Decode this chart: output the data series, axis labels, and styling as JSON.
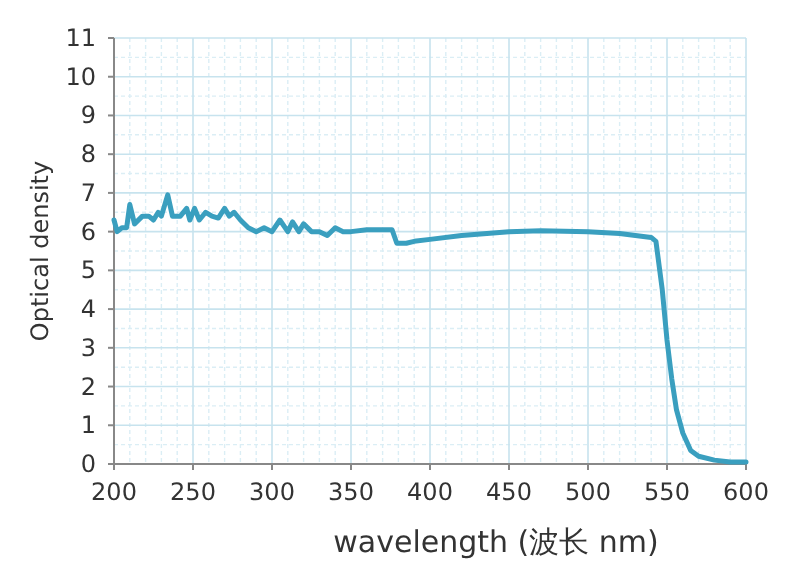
{
  "chart_data": {
    "type": "line",
    "xlabel": "wavelength (波长 nm)",
    "ylabel": "Optical density",
    "color": "#3a9fbf",
    "x": [
      200,
      202,
      205,
      208,
      210,
      213,
      218,
      222,
      225,
      228,
      230,
      234,
      237,
      242,
      246,
      248,
      251,
      254,
      258,
      262,
      266,
      270,
      273,
      276,
      280,
      285,
      290,
      295,
      300,
      305,
      310,
      313,
      317,
      320,
      325,
      330,
      335,
      340,
      345,
      350,
      360,
      370,
      376,
      379,
      385,
      390,
      400,
      420,
      450,
      470,
      500,
      520,
      540,
      543,
      547,
      550,
      553,
      556,
      560,
      565,
      570,
      580,
      590,
      600
    ],
    "values": [
      6.3,
      6.0,
      6.1,
      6.1,
      6.7,
      6.2,
      6.4,
      6.4,
      6.3,
      6.5,
      6.4,
      6.95,
      6.4,
      6.4,
      6.6,
      6.3,
      6.6,
      6.3,
      6.5,
      6.4,
      6.35,
      6.6,
      6.4,
      6.5,
      6.3,
      6.1,
      6.0,
      6.1,
      6.0,
      6.3,
      6.0,
      6.25,
      6.0,
      6.2,
      6.0,
      6.0,
      5.9,
      6.1,
      6.0,
      6.0,
      6.05,
      6.05,
      6.05,
      5.7,
      5.7,
      5.75,
      5.8,
      5.9,
      6.0,
      6.02,
      6.0,
      5.95,
      5.85,
      5.75,
      4.5,
      3.2,
      2.2,
      1.4,
      0.8,
      0.35,
      0.2,
      0.1,
      0.05,
      0.05
    ],
    "xlim": [
      200,
      600
    ],
    "ylim": [
      0,
      11
    ],
    "xticks": [
      200,
      250,
      300,
      350,
      400,
      450,
      500,
      550,
      600
    ],
    "yticks": [
      0,
      1,
      2,
      3,
      4,
      5,
      6,
      7,
      8,
      9,
      10,
      11
    ],
    "grid": true
  }
}
